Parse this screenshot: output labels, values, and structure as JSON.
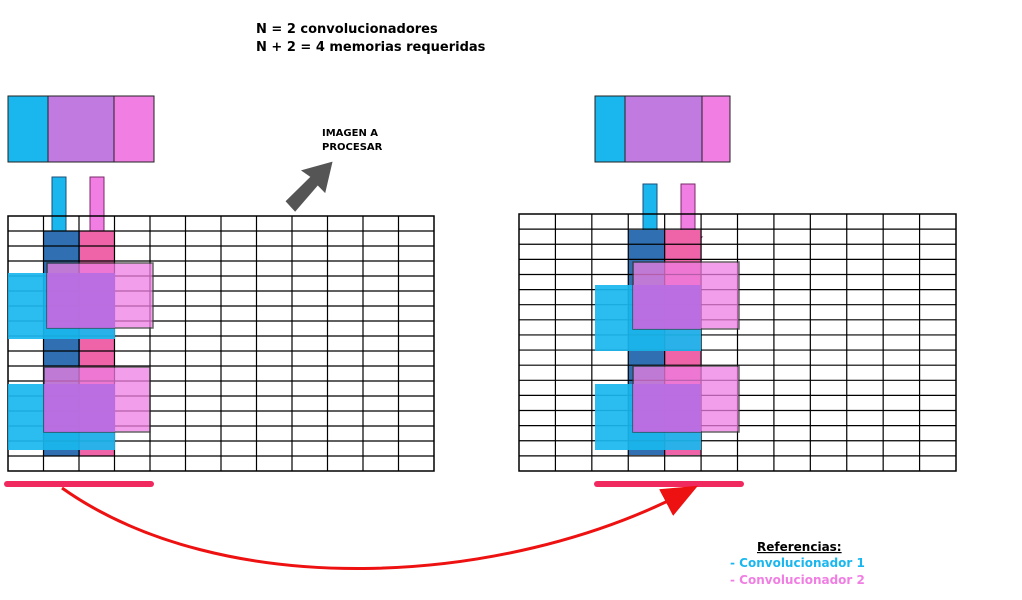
{
  "header": {
    "line1": "N = 2 convolucionadores",
    "line2": "N + 2 = 4 memorias requeridas"
  },
  "image_label": {
    "line1": "IMAGEN A",
    "line2": "PROCESAR"
  },
  "legend": {
    "title": "Referencias:",
    "item1": "- Convolucionador 1",
    "item2": "- Convolucionador 2"
  },
  "colors": {
    "conv1": "#1ab7ef",
    "conv2": "#f07ee3",
    "memory_mid": "#c07ae0",
    "column1": "#2f6fb2",
    "column2": "#ef63a8",
    "kernel_overlay": "#b96ae0",
    "highlight_bar": "#f0295f",
    "transition_arrow": "#ee1111",
    "dark_arrow": "#555555"
  },
  "grid": {
    "left_cols": 12,
    "left_rows": 17,
    "right_cols": 12,
    "right_rows": 17
  }
}
